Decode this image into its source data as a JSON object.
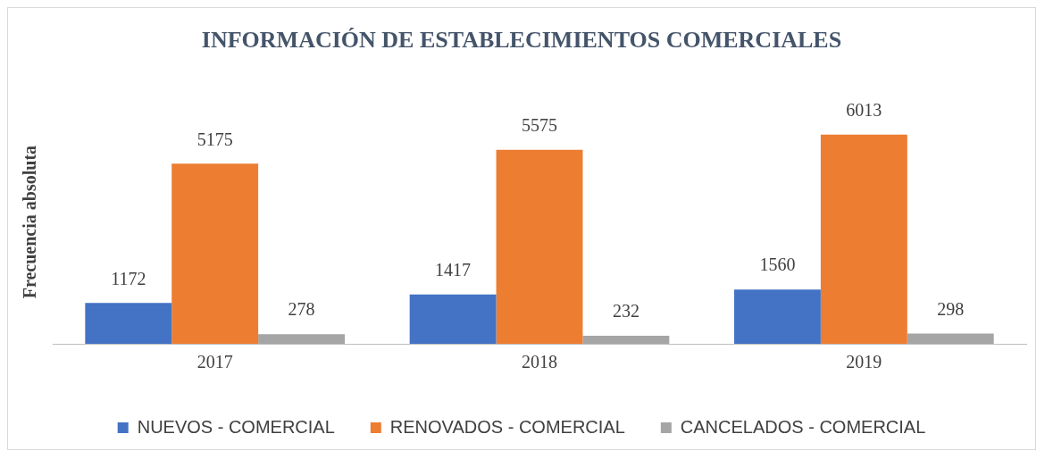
{
  "chart_data": {
    "type": "bar",
    "title": "INFORMACIÓN DE ESTABLECIMIENTOS COMERCIALES",
    "ylabel": "Frecuencia absoluta",
    "categories": [
      "2017",
      "2018",
      "2019"
    ],
    "series": [
      {
        "name": "NUEVOS - COMERCIAL",
        "color": "#4472c4",
        "values": [
          1172,
          1417,
          1560
        ]
      },
      {
        "name": "RENOVADOS - COMERCIAL",
        "color": "#ed7d31",
        "values": [
          5175,
          5575,
          6013
        ]
      },
      {
        "name": "CANCELADOS - COMERCIAL",
        "color": "#a5a5a5",
        "values": [
          278,
          232,
          298
        ]
      }
    ],
    "data_labels": true,
    "grid": false,
    "legend": "bottom"
  }
}
